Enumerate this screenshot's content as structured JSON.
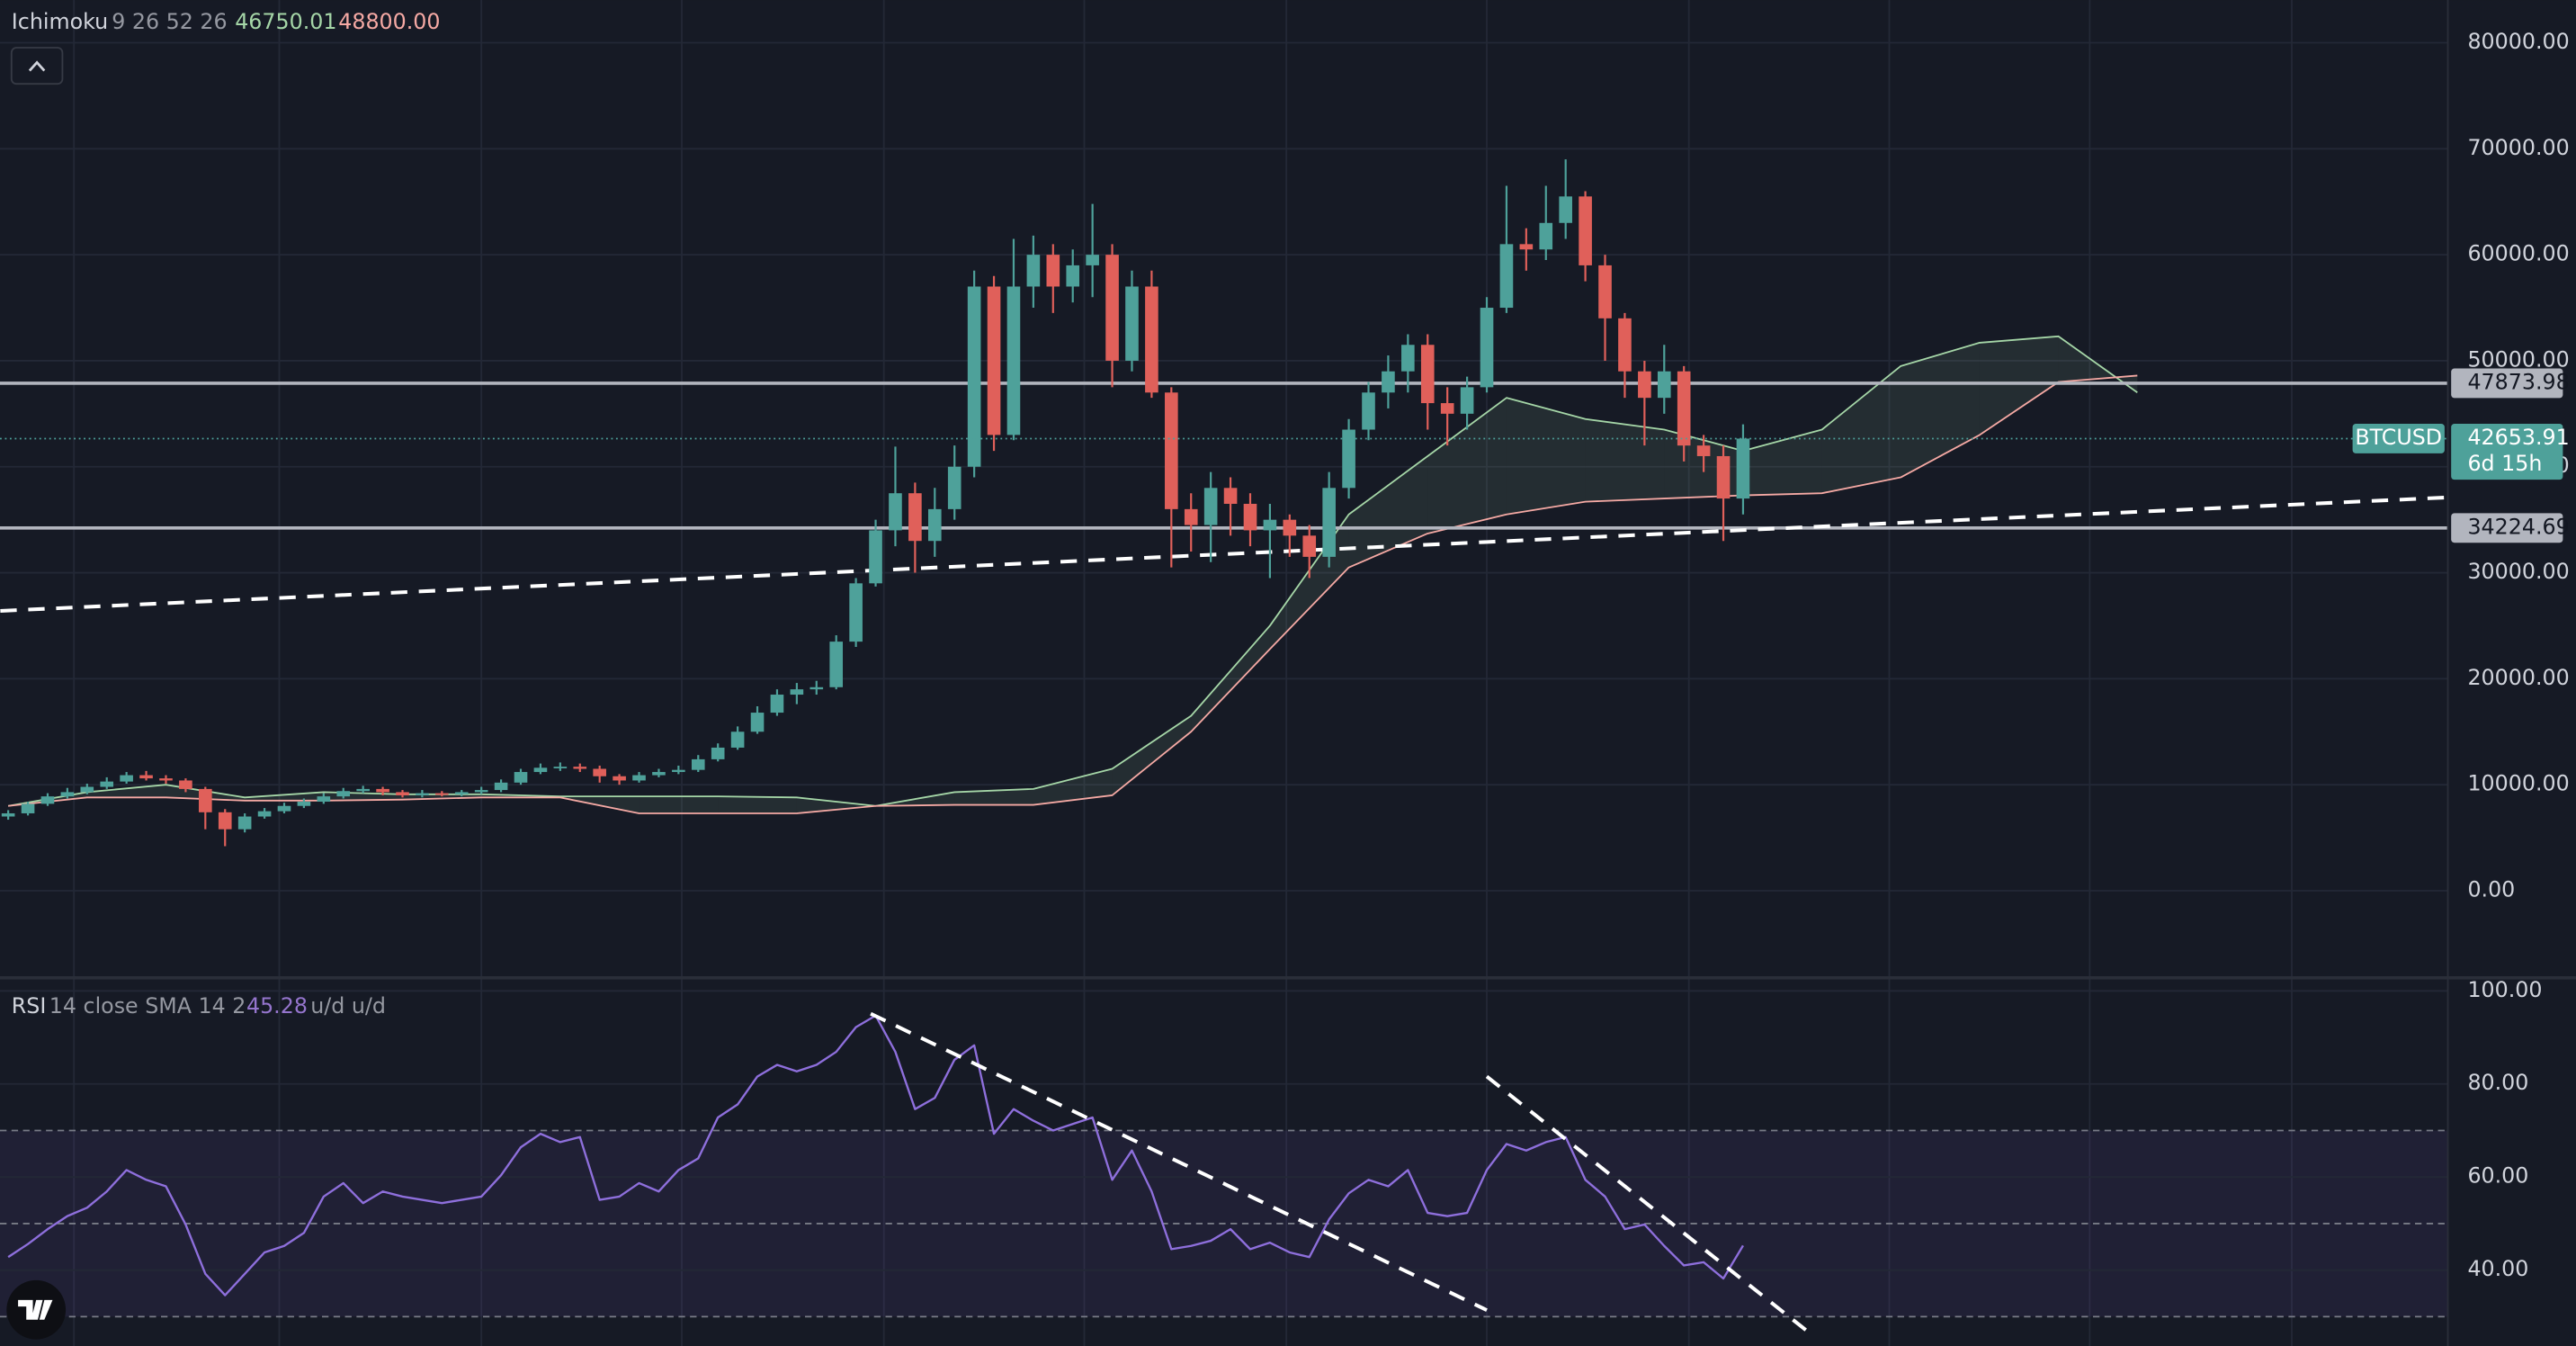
{
  "chart_data": [
    {
      "type": "candlestick",
      "indicator": {
        "name": "Ichimoku",
        "params": "9 26 52 26",
        "values": [
          "46750.01",
          "48800.00"
        ]
      },
      "symbol": "BTCUSD",
      "countdown": "6d 15h",
      "up_color": "#4ea19a",
      "down_color": "#e0605a",
      "open": [
        7000,
        7300,
        8200,
        8900,
        9300,
        9800,
        10300,
        10900,
        10600,
        10400,
        9600,
        7400,
        5800,
        7000,
        7500,
        8000,
        8400,
        8900,
        9400,
        9600,
        9300,
        9000,
        9200,
        9100,
        9300,
        9500,
        10200,
        11200,
        11600,
        11700,
        11500,
        10800,
        10400,
        10900,
        11200,
        11400,
        12400,
        13500,
        15000,
        16800,
        18500,
        19000,
        19200,
        23500,
        29000,
        34000,
        37500,
        33000,
        36000,
        40000,
        57000,
        43000,
        57000,
        60000,
        57000,
        59000,
        60000,
        50000,
        57000,
        47000,
        36000,
        34500,
        38000,
        36500,
        34000,
        35000,
        33500,
        31500,
        38000,
        43500,
        47000,
        49000,
        51500,
        46000,
        45000,
        47500,
        55000,
        61000,
        60500,
        63000,
        65500,
        59000,
        54000,
        49000,
        46500,
        49000,
        42000,
        41000,
        37000
      ],
      "high": [
        7600,
        8400,
        9200,
        9700,
        10100,
        10700,
        11200,
        11300,
        10900,
        10600,
        9800,
        7700,
        7300,
        7800,
        8300,
        8700,
        9200,
        9700,
        9900,
        9800,
        9500,
        9500,
        9400,
        9500,
        9800,
        10500,
        11500,
        12000,
        12100,
        12000,
        11800,
        11000,
        11200,
        11500,
        11800,
        12800,
        13900,
        15500,
        17400,
        19000,
        19600,
        19800,
        24100,
        29500,
        35000,
        41900,
        38500,
        38000,
        42000,
        58500,
        58000,
        61500,
        61800,
        61000,
        60500,
        64800,
        61000,
        58500,
        58500,
        47500,
        37500,
        39500,
        39000,
        37500,
        36500,
        35500,
        34500,
        39500,
        44500,
        48000,
        50500,
        52500,
        52500,
        47500,
        48500,
        56000,
        66500,
        62500,
        66500,
        69000,
        66000,
        60000,
        54500,
        50000,
        51500,
        49500,
        43000,
        42000,
        44000
      ],
      "low": [
        6700,
        7100,
        8000,
        8700,
        9100,
        9600,
        10100,
        10400,
        10100,
        9300,
        5800,
        4200,
        5500,
        6800,
        7300,
        7800,
        8200,
        8700,
        9200,
        9000,
        8800,
        8800,
        8900,
        8900,
        9100,
        9300,
        10000,
        11000,
        11300,
        11200,
        10200,
        10000,
        10200,
        10700,
        11000,
        11200,
        12200,
        13300,
        14800,
        16500,
        17600,
        18500,
        19000,
        23000,
        28700,
        32500,
        30000,
        31500,
        35000,
        39000,
        41500,
        42500,
        55000,
        54500,
        55500,
        56000,
        47500,
        49000,
        46500,
        30500,
        32000,
        31000,
        33500,
        32500,
        29500,
        31500,
        29500,
        30500,
        37000,
        42500,
        45500,
        47000,
        43500,
        42000,
        43500,
        47000,
        54500,
        58500,
        59500,
        61500,
        57500,
        50000,
        46500,
        42000,
        45000,
        40500,
        39500,
        33000,
        35500
      ],
      "close": [
        7300,
        8200,
        8900,
        9300,
        9800,
        10300,
        10900,
        10600,
        10400,
        9600,
        7400,
        5800,
        7000,
        7500,
        8000,
        8400,
        8900,
        9400,
        9600,
        9300,
        9000,
        9200,
        9100,
        9300,
        9500,
        10200,
        11200,
        11600,
        11700,
        11500,
        10800,
        10400,
        10900,
        11200,
        11400,
        12400,
        13500,
        15000,
        16800,
        18500,
        19000,
        19200,
        23500,
        29000,
        34000,
        37500,
        33000,
        36000,
        40000,
        57000,
        43000,
        57000,
        60000,
        57000,
        59000,
        60000,
        50000,
        57000,
        47000,
        36000,
        34500,
        38000,
        36500,
        34000,
        35000,
        33500,
        31500,
        38000,
        43500,
        47000,
        49000,
        51500,
        46000,
        45000,
        47500,
        55000,
        61000,
        60500,
        63000,
        65500,
        59000,
        54000,
        49000,
        46500,
        49000,
        42000,
        41000,
        37000,
        42653.91
      ],
      "series": [
        {
          "color": "#a5d6a7",
          "x": [
            0,
            4,
            8,
            12,
            16,
            20,
            24,
            28,
            32,
            36,
            40,
            44,
            48,
            52,
            56,
            60,
            64,
            68,
            72,
            76,
            80,
            84,
            88,
            92,
            96,
            100,
            104,
            108
          ],
          "values": [
            8000,
            9300,
            10000,
            8800,
            9300,
            9100,
            9100,
            8900,
            8900,
            8900,
            8800,
            8000,
            9300,
            9600,
            11500,
            16500,
            25000,
            35500,
            41000,
            46500,
            44500,
            43500,
            41500,
            43500,
            49500,
            51700,
            52300,
            47000
          ]
        },
        {
          "color": "#f5a9a4",
          "x": [
            0,
            4,
            8,
            12,
            16,
            20,
            24,
            28,
            32,
            36,
            40,
            44,
            48,
            52,
            56,
            60,
            64,
            68,
            72,
            76,
            80,
            84,
            88,
            92,
            96,
            100,
            104,
            108
          ],
          "values": [
            8000,
            8800,
            8800,
            8500,
            8500,
            8600,
            8800,
            8800,
            7300,
            7300,
            7300,
            8000,
            8100,
            8100,
            9000,
            15000,
            22800,
            30500,
            33700,
            35500,
            36700,
            37000,
            37300,
            37500,
            39000,
            43000,
            48000,
            48600
          ]
        }
      ],
      "hlines": [
        47873.98,
        34224.69
      ],
      "trendline": {
        "x": [
          -0.4,
          123.7
        ],
        "values": [
          26400,
          37100
        ]
      },
      "ylim": [
        -8220,
        84030
      ],
      "yticks": [
        {
          "value": 0,
          "label": "0.00"
        },
        {
          "value": 10000,
          "label": "10000.00"
        },
        {
          "value": 20000,
          "label": "20000.00"
        },
        {
          "value": 30000,
          "label": "30000.00"
        },
        {
          "value": 40000,
          "label": "40000.00"
        },
        {
          "value": 50000,
          "label": "50000.00"
        },
        {
          "value": 60000,
          "label": "60000.00"
        },
        {
          "value": 70000,
          "label": "70000.00"
        },
        {
          "value": 80000,
          "label": "80000.00"
        }
      ],
      "grid": true
    },
    {
      "type": "line",
      "indicator": {
        "name": "RSI",
        "params": "14 close SMA 14 2",
        "labels": "u/d u/d"
      },
      "color": "#8e6fdc",
      "values": [
        42.8,
        45.6,
        48.8,
        51.6,
        53.4,
        56.9,
        61.5,
        59.4,
        58,
        49.8,
        39.2,
        34.6,
        39.2,
        43.8,
        45.2,
        48,
        55.8,
        58.7,
        54.4,
        56.9,
        55.8,
        55.1,
        54.4,
        55.1,
        55.8,
        60.4,
        66.4,
        69.3,
        67.5,
        68.6,
        55.1,
        55.8,
        58.7,
        56.9,
        61.5,
        64,
        72.8,
        75.6,
        81.6,
        84.1,
        82.7,
        84.1,
        86.9,
        92.2,
        94.7,
        86.9,
        74.6,
        77,
        85.2,
        88.3,
        69.3,
        74.6,
        72.1,
        70,
        71.4,
        72.8,
        59.4,
        65.7,
        56.9,
        44.5,
        45.2,
        46.3,
        48.8,
        44.5,
        45.9,
        43.8,
        42.8,
        50.9,
        56.5,
        59.4,
        58,
        61.5,
        52.3,
        51.6,
        52.3,
        61.5,
        67.1,
        65.7,
        67.5,
        68.6,
        59.4,
        55.8,
        48.8,
        49.8,
        45.2,
        41,
        41.7,
        38.2,
        45.28
      ],
      "levels": [
        70,
        50,
        30
      ],
      "band": [
        30,
        70
      ],
      "trendlines": [
        {
          "x": [
            43.75,
            75
          ],
          "values": [
            95.1,
            31.4
          ]
        },
        {
          "x": [
            75,
            91.25
          ],
          "values": [
            81.6,
            26.9
          ]
        }
      ],
      "ylim": [
        23.7,
        102.8
      ],
      "yticks": [
        {
          "value": 40,
          "label": "40.00"
        },
        {
          "value": 60,
          "label": "60.00"
        },
        {
          "value": 80,
          "label": "80.00"
        },
        {
          "value": 100,
          "label": "100.00"
        }
      ],
      "grid": true
    }
  ]
}
